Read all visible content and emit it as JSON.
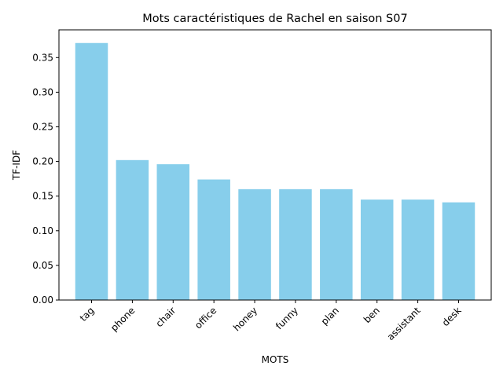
{
  "chart_data": {
    "type": "bar",
    "title": "Mots caractéristiques de Rachel en saison S07",
    "xlabel": "MOTS",
    "ylabel": "TF-IDF",
    "categories": [
      "tag",
      "phone",
      "chair",
      "office",
      "honey",
      "funny",
      "plan",
      "ben",
      "assistant",
      "desk"
    ],
    "values": [
      0.371,
      0.202,
      0.196,
      0.174,
      0.16,
      0.16,
      0.16,
      0.145,
      0.145,
      0.141
    ],
    "ylim": [
      0,
      0.39
    ],
    "yticks": [
      0.0,
      0.05,
      0.1,
      0.15,
      0.2,
      0.25,
      0.3,
      0.35
    ],
    "ytick_labels": [
      "0.00",
      "0.05",
      "0.10",
      "0.15",
      "0.20",
      "0.25",
      "0.30",
      "0.35"
    ],
    "bar_color": "#87CEEB",
    "grid": false
  }
}
